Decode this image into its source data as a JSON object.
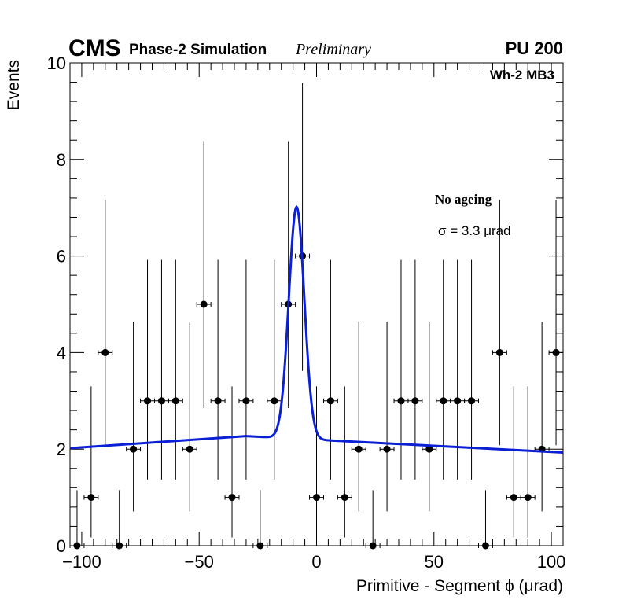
{
  "header": {
    "experiment": "CMS",
    "status": "Phase-2 Simulation",
    "preliminary": "Preliminary",
    "pileup": "PU 200",
    "region": "Wh-2 MB3"
  },
  "legend": {
    "condition": "No ageing",
    "fit_width": "σ = 3.3  μrad"
  },
  "chart_data": {
    "type": "scatter",
    "title": "",
    "xlabel": "Primitive - Segment ϕ (μrad)",
    "ylabel": "Events",
    "xlim": [
      -105,
      105
    ],
    "ylim": [
      0,
      10
    ],
    "xticks": [
      -100,
      -50,
      0,
      50,
      100
    ],
    "xtick_labels": [
      "−100",
      "−50",
      "0",
      "50",
      "100"
    ],
    "yticks": [
      0,
      2,
      4,
      6,
      8,
      10
    ],
    "ytick_labels": [
      "0",
      "2",
      "4",
      "6",
      "8",
      "10"
    ],
    "bin_width": 6,
    "series": [
      {
        "name": "data",
        "style": "points-with-poisson-errors",
        "color": "#000000",
        "points": [
          {
            "x": -102,
            "y": 0,
            "ylo": 0,
            "yhi": 1.15
          },
          {
            "x": -96,
            "y": 1,
            "ylo": 0.17,
            "yhi": 3.3
          },
          {
            "x": -90,
            "y": 4,
            "ylo": 2.08,
            "yhi": 7.16
          },
          {
            "x": -84,
            "y": 0,
            "ylo": 0,
            "yhi": 1.15
          },
          {
            "x": -78,
            "y": 2,
            "ylo": 0.71,
            "yhi": 4.64
          },
          {
            "x": -72,
            "y": 3,
            "ylo": 1.37,
            "yhi": 5.92
          },
          {
            "x": -66,
            "y": 3,
            "ylo": 1.37,
            "yhi": 5.92
          },
          {
            "x": -60,
            "y": 3,
            "ylo": 1.37,
            "yhi": 5.92
          },
          {
            "x": -54,
            "y": 2,
            "ylo": 0.71,
            "yhi": 4.64
          },
          {
            "x": -48,
            "y": 5,
            "ylo": 2.85,
            "yhi": 8.38
          },
          {
            "x": -42,
            "y": 3,
            "ylo": 1.37,
            "yhi": 5.92
          },
          {
            "x": -36,
            "y": 1,
            "ylo": 0.17,
            "yhi": 3.3
          },
          {
            "x": -30,
            "y": 3,
            "ylo": 1.37,
            "yhi": 5.92
          },
          {
            "x": -24,
            "y": 0,
            "ylo": 0,
            "yhi": 1.15
          },
          {
            "x": -18,
            "y": 3,
            "ylo": 1.37,
            "yhi": 5.92
          },
          {
            "x": -12,
            "y": 5,
            "ylo": 2.85,
            "yhi": 8.38
          },
          {
            "x": -6,
            "y": 6,
            "ylo": 3.62,
            "yhi": 9.58
          },
          {
            "x": 0,
            "y": 1,
            "ylo": 0.17,
            "yhi": 3.3
          },
          {
            "x": 6,
            "y": 3,
            "ylo": 1.37,
            "yhi": 5.92
          },
          {
            "x": 12,
            "y": 1,
            "ylo": 0.17,
            "yhi": 3.3
          },
          {
            "x": 18,
            "y": 2,
            "ylo": 0.71,
            "yhi": 4.64
          },
          {
            "x": 24,
            "y": 0,
            "ylo": 0,
            "yhi": 1.15
          },
          {
            "x": 30,
            "y": 2,
            "ylo": 0.71,
            "yhi": 4.64
          },
          {
            "x": 36,
            "y": 3,
            "ylo": 1.37,
            "yhi": 5.92
          },
          {
            "x": 42,
            "y": 3,
            "ylo": 1.37,
            "yhi": 5.92
          },
          {
            "x": 48,
            "y": 2,
            "ylo": 0.71,
            "yhi": 4.64
          },
          {
            "x": 54,
            "y": 3,
            "ylo": 1.37,
            "yhi": 5.92
          },
          {
            "x": 60,
            "y": 3,
            "ylo": 1.37,
            "yhi": 5.92
          },
          {
            "x": 66,
            "y": 3,
            "ylo": 1.37,
            "yhi": 5.92
          },
          {
            "x": 72,
            "y": 0,
            "ylo": 0,
            "yhi": 1.15
          },
          {
            "x": 78,
            "y": 4,
            "ylo": 2.08,
            "yhi": 7.16
          },
          {
            "x": 84,
            "y": 1,
            "ylo": 0.17,
            "yhi": 3.3
          },
          {
            "x": 90,
            "y": 1,
            "ylo": 0.17,
            "yhi": 3.3
          },
          {
            "x": 96,
            "y": 2,
            "ylo": 0.71,
            "yhi": 4.64
          },
          {
            "x": 102,
            "y": 4,
            "ylo": 2.08,
            "yhi": 7.16
          }
        ]
      },
      {
        "name": "fit",
        "style": "line",
        "color": "#0a1fd6",
        "model": "gaussian-plus-linear",
        "gauss_amplitude": 4.8,
        "gauss_mean": -8.5,
        "gauss_sigma": 3.3,
        "bkg_at_minus105": 2.02,
        "bkg_at_minus30": 2.27,
        "bkg_at_105": 1.93
      }
    ]
  }
}
